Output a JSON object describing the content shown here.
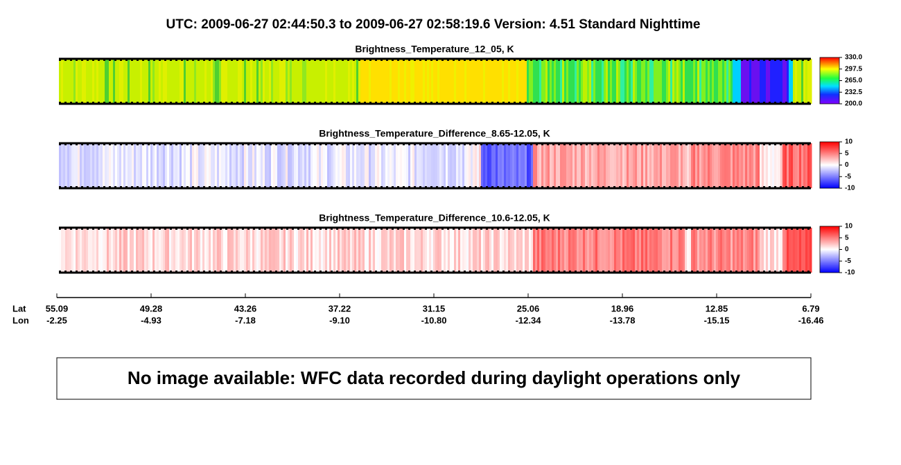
{
  "header": {
    "title": "UTC:  2009-06-27   02:44:50.3  to  2009-06-27   02:58:19.6   Version: 4.51  Standard Nighttime"
  },
  "panels": [
    {
      "title": "Brightness_Temperature_12_05, K",
      "ticks": [
        {
          "value": 330,
          "label": "330.0"
        },
        {
          "value": 297.5,
          "label": "297.5"
        },
        {
          "value": 265,
          "label": "265.0"
        },
        {
          "value": 232.5,
          "label": "232.5"
        },
        {
          "value": 200,
          "label": "200.0"
        }
      ]
    },
    {
      "title": "Brightness_Temperature_Difference_8.65-12.05, K",
      "ticks": [
        10,
        5,
        0,
        -5,
        -10
      ]
    },
    {
      "title": "Brightness_Temperature_Difference_10.6-12.05, K",
      "ticks": [
        10,
        5,
        0,
        -5,
        -10
      ]
    }
  ],
  "axis": {
    "lat_label": "Lat",
    "lon_label": "Lon",
    "ticks": [
      {
        "lat": "55.09",
        "lon": "-2.25"
      },
      {
        "lat": "49.28",
        "lon": "-4.93"
      },
      {
        "lat": "43.26",
        "lon": "-7.18"
      },
      {
        "lat": "37.22",
        "lon": "-9.10"
      },
      {
        "lat": "31.15",
        "lon": "-10.80"
      },
      {
        "lat": "25.06",
        "lon": "-12.34"
      },
      {
        "lat": "18.96",
        "lon": "-13.78"
      },
      {
        "lat": "12.85",
        "lon": "-15.15"
      },
      {
        "lat": "6.79",
        "lon": "-16.46"
      }
    ]
  },
  "notice": "No image available: WFC data recorded during daylight operations only"
}
